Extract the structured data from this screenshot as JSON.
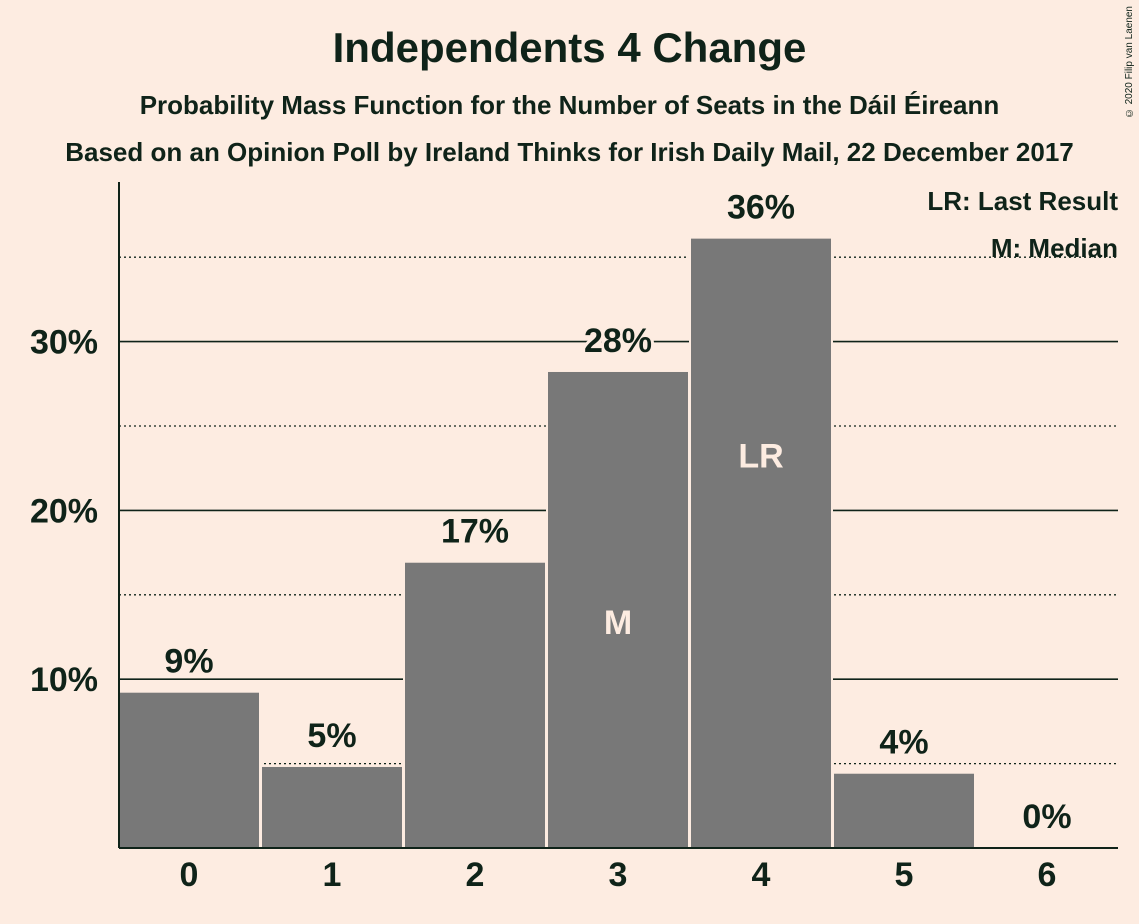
{
  "title": "Independents 4 Change",
  "subtitle": "Probability Mass Function for the Number of Seats in the Dáil Éireann",
  "subtitle2": "Based on an Opinion Poll by Ireland Thinks for Irish Daily Mail, 22 December 2017",
  "copyright": "© 2020 Filip van Laenen",
  "legend": {
    "last_result": "LR: Last Result",
    "median": "M: Median"
  },
  "colors": {
    "background": "#fdece1",
    "bar": "#787878",
    "text": "#0f2319",
    "bar_label": "#fdece1"
  },
  "chart_data": {
    "type": "bar",
    "categories": [
      "0",
      "1",
      "2",
      "3",
      "4",
      "5",
      "6"
    ],
    "values": [
      9.2,
      4.8,
      16.9,
      28.2,
      36.1,
      4.4,
      0
    ],
    "value_labels": [
      "9%",
      "5%",
      "17%",
      "28%",
      "36%",
      "4%",
      "0%"
    ],
    "bar_markers": [
      "",
      "",
      "",
      "M",
      "LR",
      "",
      ""
    ],
    "ytick_values": [
      10,
      20,
      30
    ],
    "ytick_labels": [
      "10%",
      "20%",
      "30%"
    ],
    "minor_gridlines": [
      5,
      15,
      25,
      35
    ],
    "ylim": [
      0,
      39
    ],
    "legend_position": "top-right"
  }
}
